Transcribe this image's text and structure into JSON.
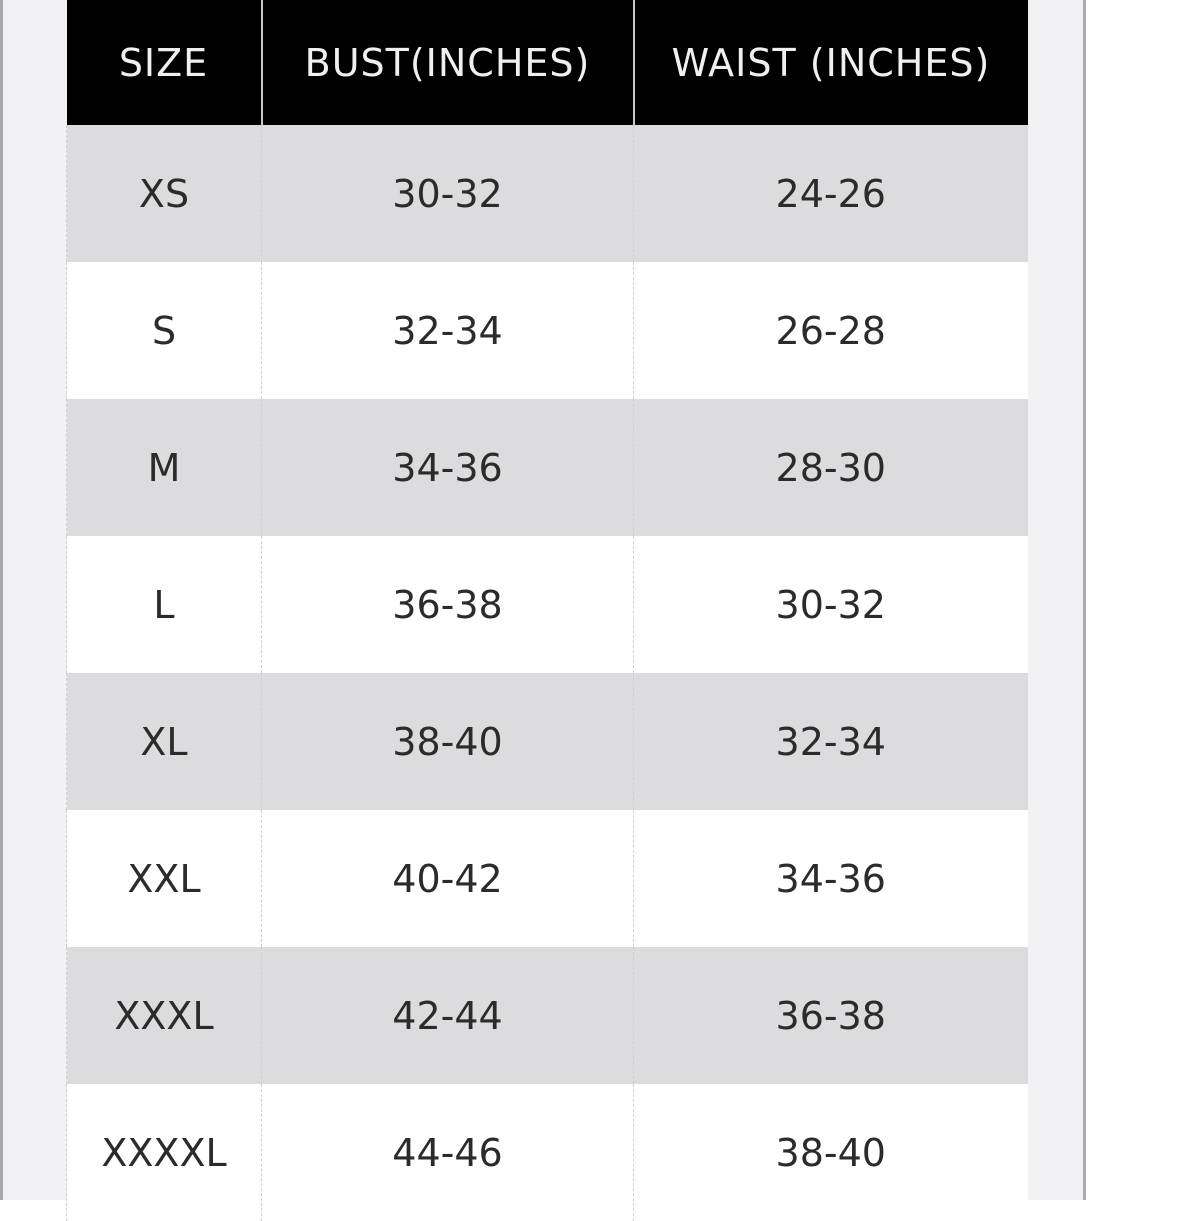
{
  "table": {
    "headers": [
      "SIZE",
      "BUST(INCHES)",
      "WAIST (INCHES)"
    ],
    "rows": [
      [
        "XS",
        "30-32",
        "24-26"
      ],
      [
        "S",
        "32-34",
        "26-28"
      ],
      [
        "M",
        "34-36",
        "28-30"
      ],
      [
        "L",
        "36-38",
        "30-32"
      ],
      [
        "XL",
        "38-40",
        "32-34"
      ],
      [
        "XXL",
        "40-42",
        "34-36"
      ],
      [
        "XXXL",
        "42-44",
        "36-38"
      ],
      [
        "XXXXL",
        "44-46",
        "38-40"
      ]
    ]
  },
  "colors": {
    "header_bg": "#000000",
    "stripe": "#dcdbdd",
    "row": "#ffffff",
    "panel": "#f2f1f4"
  }
}
